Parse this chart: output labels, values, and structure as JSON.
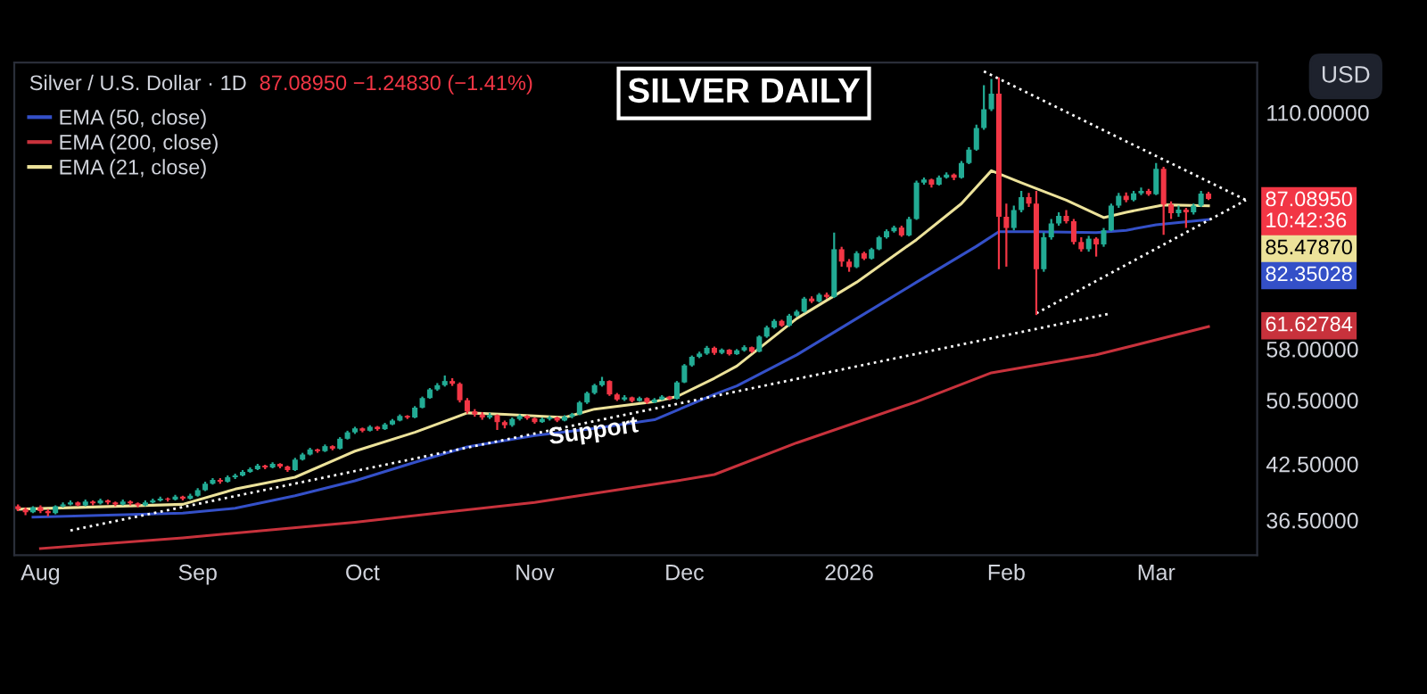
{
  "chart_data": {
    "type": "candlestick",
    "title": "Silver / U.S. Dollar · 1D",
    "subtitle": "87.08950 −1.24830 (−1.41%)",
    "categories": [
      null,
      null,
      null,
      "Aug",
      null,
      null,
      null,
      null,
      null,
      null,
      null,
      null,
      null,
      null,
      null,
      null,
      null,
      null,
      null,
      null,
      null,
      null,
      null,
      null,
      "Sep",
      null,
      null,
      null,
      null,
      null,
      null,
      null,
      null,
      null,
      null,
      null,
      null,
      null,
      null,
      null,
      null,
      null,
      null,
      null,
      null,
      null,
      "Oct",
      null,
      null,
      null,
      null,
      null,
      null,
      null,
      null,
      null,
      null,
      null,
      null,
      null,
      null,
      null,
      null,
      null,
      null,
      null,
      null,
      null,
      null,
      "Nov",
      null,
      null,
      null,
      null,
      null,
      null,
      null,
      null,
      null,
      null,
      null,
      null,
      null,
      null,
      null,
      null,
      null,
      null,
      null,
      "Dec",
      null,
      null,
      null,
      null,
      null,
      null,
      null,
      null,
      null,
      null,
      null,
      null,
      null,
      null,
      null,
      null,
      null,
      null,
      null,
      null,
      null,
      "2026",
      null,
      null,
      null,
      null,
      null,
      null,
      null,
      null,
      null,
      null,
      null,
      null,
      null,
      null,
      null,
      null,
      null,
      null,
      null,
      null,
      "Feb",
      null,
      null,
      null,
      null,
      null,
      null,
      null,
      null,
      null,
      null,
      null,
      null,
      null,
      null,
      null,
      null,
      null,
      null,
      null,
      "Mar",
      null,
      null,
      null,
      null,
      null,
      null,
      null,
      null,
      null,
      null,
      null,
      null,
      null
    ],
    "ohlc": [
      [
        37.9,
        38.1,
        37.4,
        37.6
      ],
      [
        37.6,
        37.8,
        37.0,
        37.3
      ],
      [
        37.3,
        37.9,
        37.2,
        37.8
      ],
      [
        37.8,
        38.0,
        37.2,
        37.4
      ],
      [
        37.4,
        37.6,
        36.9,
        37.2
      ],
      [
        37.2,
        38.0,
        37.1,
        37.9
      ],
      [
        37.9,
        38.3,
        37.8,
        38.1
      ],
      [
        38.1,
        38.5,
        38.0,
        38.3
      ],
      [
        38.3,
        38.4,
        37.9,
        38.0
      ],
      [
        38.0,
        38.6,
        37.9,
        38.4
      ],
      [
        38.4,
        38.5,
        38.0,
        38.2
      ],
      [
        38.2,
        38.7,
        38.1,
        38.5
      ],
      [
        38.5,
        38.6,
        38.1,
        38.3
      ],
      [
        38.3,
        38.4,
        37.9,
        38.1
      ],
      [
        38.1,
        38.6,
        38.0,
        38.4
      ],
      [
        38.4,
        38.5,
        38.0,
        38.2
      ],
      [
        38.2,
        38.3,
        37.8,
        38.0
      ],
      [
        38.0,
        38.5,
        37.9,
        38.3
      ],
      [
        38.3,
        38.7,
        38.2,
        38.5
      ],
      [
        38.5,
        38.9,
        38.4,
        38.7
      ],
      [
        38.7,
        38.8,
        38.4,
        38.6
      ],
      [
        38.6,
        39.1,
        38.5,
        38.9
      ],
      [
        38.9,
        39.0,
        38.5,
        38.7
      ],
      [
        38.7,
        39.2,
        38.6,
        39.0
      ],
      [
        39.0,
        39.8,
        38.9,
        39.6
      ],
      [
        39.6,
        40.5,
        39.5,
        40.3
      ],
      [
        40.3,
        40.9,
        40.2,
        40.7
      ],
      [
        40.7,
        40.9,
        40.3,
        40.5
      ],
      [
        40.5,
        41.2,
        40.4,
        41.0
      ],
      [
        41.0,
        41.4,
        40.8,
        41.2
      ],
      [
        41.2,
        41.8,
        41.1,
        41.6
      ],
      [
        41.6,
        42.1,
        41.5,
        41.9
      ],
      [
        41.9,
        42.5,
        41.8,
        42.3
      ],
      [
        42.3,
        42.4,
        41.9,
        42.1
      ],
      [
        42.1,
        42.7,
        42.0,
        42.5
      ],
      [
        42.5,
        42.6,
        42.0,
        42.2
      ],
      [
        42.2,
        42.3,
        41.6,
        41.8
      ],
      [
        41.8,
        43.2,
        41.7,
        43.0
      ],
      [
        43.0,
        43.8,
        42.9,
        43.6
      ],
      [
        43.6,
        44.4,
        43.5,
        44.2
      ],
      [
        44.2,
        44.3,
        43.8,
        44.0
      ],
      [
        44.0,
        44.8,
        43.9,
        44.6
      ],
      [
        44.6,
        44.7,
        44.1,
        44.3
      ],
      [
        44.3,
        45.7,
        44.2,
        45.5
      ],
      [
        45.5,
        46.5,
        45.4,
        46.3
      ],
      [
        46.3,
        47.0,
        46.1,
        46.8
      ],
      [
        46.8,
        46.9,
        46.3,
        46.5
      ],
      [
        46.5,
        47.2,
        46.4,
        47.0
      ],
      [
        47.0,
        47.1,
        46.5,
        46.7
      ],
      [
        46.7,
        47.5,
        46.6,
        47.3
      ],
      [
        47.3,
        48.0,
        47.2,
        47.8
      ],
      [
        47.8,
        48.6,
        47.7,
        48.4
      ],
      [
        48.4,
        48.5,
        48.0,
        48.2
      ],
      [
        48.2,
        49.7,
        48.1,
        49.5
      ],
      [
        49.5,
        51.0,
        49.4,
        50.8
      ],
      [
        50.8,
        52.2,
        50.7,
        52.0
      ],
      [
        52.0,
        52.9,
        51.8,
        52.6
      ],
      [
        52.6,
        54.0,
        52.4,
        53.2
      ],
      [
        53.2,
        53.6,
        52.5,
        52.8
      ],
      [
        52.8,
        53.0,
        50.2,
        50.5
      ],
      [
        50.5,
        50.8,
        48.7,
        49.0
      ],
      [
        49.0,
        49.3,
        48.3,
        48.6
      ],
      [
        48.6,
        48.9,
        47.9,
        48.2
      ],
      [
        48.2,
        48.8,
        48.0,
        48.5
      ],
      [
        48.5,
        48.6,
        46.6,
        47.6
      ],
      [
        47.6,
        47.8,
        46.8,
        47.2
      ],
      [
        47.2,
        48.2,
        47.0,
        48.0
      ],
      [
        48.0,
        48.6,
        47.8,
        48.4
      ],
      [
        48.4,
        48.5,
        47.9,
        48.1
      ],
      [
        48.1,
        48.2,
        47.4,
        47.6
      ],
      [
        47.6,
        48.2,
        47.5,
        48.0
      ],
      [
        48.0,
        48.4,
        47.8,
        48.2
      ],
      [
        48.2,
        48.3,
        47.6,
        47.8
      ],
      [
        47.8,
        48.5,
        47.7,
        48.3
      ],
      [
        48.3,
        48.8,
        48.1,
        48.6
      ],
      [
        48.6,
        50.4,
        48.5,
        50.2
      ],
      [
        50.2,
        51.7,
        50.0,
        51.5
      ],
      [
        51.5,
        52.8,
        51.3,
        52.6
      ],
      [
        52.6,
        53.8,
        52.4,
        53.2
      ],
      [
        53.2,
        53.3,
        51.1,
        51.3
      ],
      [
        51.3,
        51.5,
        50.4,
        50.6
      ],
      [
        50.6,
        51.2,
        50.4,
        50.9
      ],
      [
        50.9,
        51.0,
        50.2,
        50.4
      ],
      [
        50.4,
        51.0,
        50.3,
        50.8
      ],
      [
        50.8,
        50.9,
        50.0,
        50.2
      ],
      [
        50.2,
        50.8,
        50.1,
        50.6
      ],
      [
        50.6,
        51.2,
        50.5,
        51.0
      ],
      [
        51.0,
        51.1,
        50.5,
        50.7
      ],
      [
        50.7,
        53.2,
        50.6,
        53.0
      ],
      [
        53.0,
        55.7,
        52.9,
        55.5
      ],
      [
        55.5,
        57.0,
        55.3,
        56.8
      ],
      [
        56.8,
        57.6,
        56.6,
        57.3
      ],
      [
        57.3,
        58.5,
        57.1,
        58.2
      ],
      [
        58.2,
        58.4,
        57.1,
        57.4
      ],
      [
        57.4,
        58.1,
        57.2,
        57.9
      ],
      [
        57.9,
        58.0,
        57.0,
        57.2
      ],
      [
        57.2,
        58.0,
        57.1,
        57.8
      ],
      [
        57.8,
        58.6,
        57.6,
        58.3
      ],
      [
        58.3,
        58.4,
        57.4,
        57.6
      ],
      [
        57.6,
        60.2,
        57.5,
        60.0
      ],
      [
        60.0,
        61.8,
        59.8,
        61.5
      ],
      [
        61.5,
        62.9,
        61.3,
        62.6
      ],
      [
        62.6,
        62.8,
        61.6,
        61.8
      ],
      [
        61.8,
        63.8,
        61.6,
        63.5
      ],
      [
        63.5,
        64.5,
        63.3,
        64.2
      ],
      [
        64.2,
        66.8,
        64.0,
        66.5
      ],
      [
        66.5,
        66.9,
        65.7,
        66.0
      ],
      [
        66.0,
        67.5,
        65.8,
        67.2
      ],
      [
        67.2,
        67.6,
        66.5,
        66.8
      ],
      [
        66.8,
        79.5,
        66.6,
        76.0
      ],
      [
        76.0,
        76.5,
        72.5,
        73.5
      ],
      [
        73.5,
        74.0,
        71.5,
        72.4
      ],
      [
        72.4,
        75.6,
        72.2,
        75.2
      ],
      [
        75.2,
        75.5,
        73.8,
        74.1
      ],
      [
        74.1,
        76.3,
        73.9,
        76.0
      ],
      [
        76.0,
        78.8,
        75.8,
        78.5
      ],
      [
        78.5,
        80.2,
        78.2,
        79.8
      ],
      [
        79.8,
        81.0,
        79.5,
        80.6
      ],
      [
        80.6,
        81.0,
        78.6,
        78.9
      ],
      [
        78.9,
        83.0,
        78.7,
        82.5
      ],
      [
        82.5,
        91.5,
        82.3,
        91.0
      ],
      [
        91.0,
        92.3,
        90.5,
        91.8
      ],
      [
        91.8,
        92.0,
        89.8,
        90.5
      ],
      [
        90.5,
        92.8,
        90.3,
        92.3
      ],
      [
        92.3,
        93.6,
        92.0,
        93.0
      ],
      [
        93.0,
        93.3,
        91.6,
        92.2
      ],
      [
        92.2,
        96.5,
        92.0,
        96.0
      ],
      [
        96.0,
        100.2,
        95.7,
        99.5
      ],
      [
        99.5,
        106.5,
        99.2,
        105.5
      ],
      [
        105.5,
        118.5,
        105.0,
        111.0
      ],
      [
        111.0,
        120.5,
        110.5,
        115.8
      ],
      [
        115.8,
        121.0,
        72.0,
        83.0
      ],
      [
        83.0,
        86.0,
        72.5,
        80.5
      ],
      [
        80.5,
        85.5,
        80.0,
        84.5
      ],
      [
        84.5,
        89.0,
        84.0,
        87.5
      ],
      [
        87.5,
        88.5,
        85.2,
        86.0
      ],
      [
        86.0,
        89.0,
        63.6,
        72.0
      ],
      [
        72.0,
        79.5,
        71.5,
        78.5
      ],
      [
        78.5,
        82.5,
        78.0,
        81.5
      ],
      [
        81.5,
        84.0,
        81.0,
        83.2
      ],
      [
        83.2,
        84.5,
        81.5,
        82.0
      ],
      [
        82.0,
        82.5,
        77.0,
        77.5
      ],
      [
        77.5,
        78.5,
        75.5,
        76.0
      ],
      [
        76.0,
        78.8,
        75.5,
        78.2
      ],
      [
        78.2,
        78.5,
        74.5,
        77.0
      ],
      [
        77.0,
        80.5,
        76.5,
        80.0
      ],
      [
        80.0,
        86.0,
        79.8,
        85.5
      ],
      [
        85.5,
        88.5,
        85.0,
        87.8
      ],
      [
        87.8,
        88.6,
        86.3,
        86.8
      ],
      [
        86.8,
        89.0,
        86.5,
        88.4
      ],
      [
        88.4,
        89.8,
        88.0,
        89.0
      ],
      [
        89.0,
        89.5,
        87.8,
        88.2
      ],
      [
        88.2,
        96.0,
        88.0,
        94.5
      ],
      [
        94.5,
        95.0,
        79.0,
        85.8
      ],
      [
        85.8,
        86.5,
        82.5,
        83.8
      ],
      [
        83.8,
        85.5,
        83.0,
        84.6
      ],
      [
        84.6,
        85.0,
        80.5,
        84.0
      ],
      [
        84.0,
        86.0,
        83.5,
        85.5
      ],
      [
        85.5,
        89.0,
        85.2,
        88.34
      ],
      [
        88.34,
        88.8,
        86.8,
        87.09
      ],
      null,
      null,
      null,
      null,
      null,
      null
    ],
    "colors": [
      "#f23645",
      "#f23645",
      "#22ab94",
      "#f23645",
      "#f23645",
      "#22ab94",
      "#22ab94",
      "#22ab94",
      "#f23645",
      "#22ab94",
      "#f23645",
      "#22ab94",
      "#f23645",
      "#f23645",
      "#22ab94",
      "#f23645",
      "#f23645",
      "#22ab94",
      "#22ab94",
      "#22ab94",
      "#f23645",
      "#22ab94",
      "#f23645",
      "#22ab94",
      "#22ab94",
      "#22ab94",
      "#22ab94",
      "#f23645",
      "#22ab94",
      "#22ab94",
      "#22ab94",
      "#22ab94",
      "#22ab94",
      "#f23645",
      "#22ab94",
      "#f23645",
      "#f23645",
      "#22ab94",
      "#22ab94",
      "#22ab94",
      "#f23645",
      "#22ab94",
      "#f23645",
      "#22ab94",
      "#22ab94",
      "#22ab94",
      "#f23645",
      "#22ab94",
      "#f23645",
      "#22ab94",
      "#22ab94",
      "#22ab94",
      "#f23645",
      "#22ab94",
      "#22ab94",
      "#22ab94",
      "#22ab94",
      "#22ab94",
      "#f23645",
      "#f23645",
      "#f23645",
      "#f23645",
      "#f23645",
      "#22ab94",
      "#f23645",
      "#f23645",
      "#22ab94",
      "#22ab94",
      "#f23645",
      "#f23645",
      "#22ab94",
      "#22ab94",
      "#f23645",
      "#22ab94",
      "#22ab94",
      "#22ab94",
      "#22ab94",
      "#22ab94",
      "#22ab94",
      "#f23645",
      "#f23645",
      "#22ab94",
      "#f23645",
      "#22ab94",
      "#f23645",
      "#22ab94",
      "#22ab94",
      "#f23645",
      "#22ab94",
      "#22ab94",
      "#22ab94",
      "#22ab94",
      "#22ab94",
      "#f23645",
      "#22ab94",
      "#f23645",
      "#22ab94",
      "#22ab94",
      "#f23645",
      "#22ab94",
      "#22ab94",
      "#22ab94",
      "#f23645",
      "#22ab94",
      "#22ab94",
      "#22ab94",
      "#f23645",
      "#22ab94",
      "#f23645",
      "#22ab94",
      "#f23645",
      "#f23645",
      "#22ab94",
      "#f23645",
      "#22ab94",
      "#22ab94",
      "#22ab94",
      "#22ab94",
      "#f23645",
      "#22ab94",
      "#22ab94",
      "#22ab94",
      "#f23645",
      "#22ab94",
      "#22ab94",
      "#f23645",
      "#22ab94",
      "#22ab94",
      "#22ab94",
      "#22ab94",
      "#22ab94",
      "#f23645",
      "#f23645",
      "#22ab94",
      "#22ab94",
      "#f23645",
      "#f23645",
      "#22ab94",
      "#22ab94",
      "#22ab94",
      "#f23645",
      "#f23645",
      "#f23645",
      "#22ab94",
      "#f23645",
      "#22ab94",
      "#22ab94",
      "#22ab94",
      "#f23645",
      "#22ab94",
      "#22ab94",
      "#f23645",
      "#22ab94",
      "#f23645",
      "#f23645",
      "#22ab94",
      "#f23645",
      "#22ab94",
      "#22ab94",
      "#f23645",
      null,
      null,
      null,
      null,
      null,
      null
    ],
    "log": "y",
    "ylim": [
      33.2,
      126
    ],
    "yticks": [
      {
        "value": 36.5,
        "label": "36.50000"
      },
      {
        "value": 42.5,
        "label": "42.50000"
      },
      {
        "value": 50.5,
        "label": "50.50000"
      },
      {
        "value": 58,
        "label": "58.00000"
      },
      {
        "value": 110,
        "label": "110.00000"
      }
    ],
    "series": [
      {
        "type": "line",
        "name": "EMA (50, close)",
        "color": "#3450c8",
        "line_style": "solid",
        "values": [
          null,
          null,
          36.8,
          null,
          null,
          null,
          null,
          null,
          null,
          null,
          null,
          null,
          null,
          null,
          null,
          null,
          null,
          null,
          null,
          null,
          null,
          null,
          37.2,
          null,
          null,
          null,
          null,
          null,
          null,
          37.7,
          null,
          null,
          null,
          null,
          null,
          null,
          null,
          39,
          null,
          null,
          null,
          null,
          null,
          null,
          null,
          40.6,
          null,
          null,
          null,
          null,
          null,
          null,
          null,
          42.7,
          null,
          null,
          null,
          null,
          null,
          null,
          44.5,
          null,
          null,
          null,
          null,
          null,
          null,
          null,
          null,
          45.9,
          null,
          null,
          null,
          null,
          null,
          null,
          null,
          46.8,
          null,
          null,
          null,
          null,
          null,
          null,
          null,
          47.9,
          null,
          null,
          null,
          null,
          null,
          null,
          null,
          51.3,
          null,
          null,
          52.5,
          null,
          null,
          null,
          null,
          null,
          null,
          null,
          57.1,
          null,
          null,
          null,
          null,
          null,
          null,
          null,
          63,
          null,
          null,
          null,
          null,
          null,
          null,
          null,
          69.5,
          null,
          null,
          null,
          null,
          null,
          null,
          null,
          76.6,
          null,
          null,
          79.7,
          null,
          null,
          null,
          null,
          79.7,
          null,
          null,
          null,
          null,
          null,
          null,
          null,
          79.5,
          null,
          null,
          null,
          80,
          null,
          null,
          null,
          81.2,
          null,
          null,
          null,
          null,
          null,
          null,
          82.35028,
          null,
          null,
          null,
          null,
          null,
          null
        ]
      },
      {
        "type": "line",
        "name": "EMA (200, close)",
        "color": "#c8323c",
        "line_style": "solid",
        "values": [
          null,
          null,
          null,
          33.8,
          null,
          null,
          null,
          null,
          null,
          null,
          null,
          null,
          null,
          null,
          null,
          null,
          null,
          null,
          null,
          null,
          null,
          null,
          34.8,
          null,
          null,
          null,
          null,
          null,
          null,
          null,
          null,
          null,
          null,
          null,
          null,
          null,
          null,
          null,
          null,
          null,
          null,
          null,
          null,
          null,
          null,
          36.3,
          null,
          null,
          null,
          null,
          null,
          null,
          null,
          null,
          null,
          null,
          null,
          null,
          null,
          null,
          null,
          null,
          null,
          null,
          null,
          null,
          null,
          null,
          null,
          38.3,
          null,
          null,
          null,
          null,
          null,
          null,
          null,
          null,
          null,
          null,
          null,
          null,
          null,
          null,
          null,
          null,
          null,
          null,
          40.6,
          null,
          null,
          null,
          null,
          41.3,
          null,
          null,
          null,
          null,
          null,
          null,
          null,
          null,
          null,
          null,
          45,
          null,
          null,
          null,
          null,
          null,
          null,
          null,
          null,
          null,
          null,
          null,
          null,
          null,
          null,
          null,
          50.3,
          null,
          null,
          null,
          null,
          null,
          null,
          null,
          null,
          null,
          54.4,
          null,
          null,
          null,
          null,
          null,
          null,
          null,
          null,
          null,
          null,
          null,
          null,
          null,
          57.1,
          null,
          null,
          null,
          null,
          null,
          null,
          null,
          null,
          null,
          null,
          null,
          null,
          null,
          null,
          61.62784,
          null,
          null,
          null,
          null,
          null,
          null
        ]
      },
      {
        "type": "line",
        "name": "EMA (21, close)",
        "color": "#ece29a",
        "line_style": "solid",
        "values": [
          37.6,
          null,
          null,
          null,
          null,
          null,
          null,
          null,
          null,
          null,
          null,
          null,
          null,
          null,
          null,
          null,
          null,
          null,
          null,
          null,
          null,
          null,
          38.1,
          null,
          null,
          null,
          null,
          null,
          null,
          39.7,
          null,
          null,
          null,
          null,
          null,
          null,
          null,
          41,
          null,
          null,
          null,
          null,
          null,
          null,
          null,
          44,
          null,
          null,
          null,
          null,
          null,
          null,
          null,
          46.3,
          null,
          null,
          null,
          null,
          null,
          null,
          48.8,
          null,
          null,
          null,
          null,
          48.6,
          null,
          null,
          null,
          null,
          null,
          null,
          null,
          48.2,
          null,
          null,
          null,
          49.3,
          null,
          null,
          null,
          null,
          null,
          null,
          null,
          50.3,
          null,
          null,
          51,
          null,
          null,
          null,
          null,
          53.6,
          null,
          null,
          55.4,
          null,
          null,
          null,
          null,
          null,
          null,
          null,
          63,
          null,
          null,
          null,
          null,
          null,
          null,
          null,
          69.5,
          null,
          null,
          null,
          null,
          null,
          null,
          null,
          78,
          null,
          null,
          null,
          null,
          null,
          86,
          null,
          null,
          null,
          94,
          null,
          null,
          null,
          91,
          null,
          null,
          null,
          null,
          null,
          86.8,
          null,
          null,
          null,
          null,
          82.8,
          null,
          null,
          84,
          null,
          null,
          null,
          null,
          85.7,
          null,
          null,
          null,
          null,
          null,
          85.4787,
          null,
          null,
          null,
          null,
          null,
          null
        ]
      },
      {
        "type": "line",
        "color": "#ffffff",
        "line_style": "dotted",
        "values": [
          null,
          null,
          null,
          null,
          null,
          null,
          null,
          35.5,
          null,
          null,
          null,
          null,
          null,
          null,
          null,
          null,
          null,
          null,
          null,
          null,
          null,
          null,
          null,
          null,
          null,
          null,
          null,
          null,
          null,
          null,
          null,
          null,
          null,
          null,
          null,
          null,
          null,
          null,
          null,
          null,
          null,
          null,
          null,
          null,
          null,
          null,
          null,
          null,
          null,
          null,
          null,
          null,
          null,
          null,
          null,
          null,
          null,
          null,
          null,
          null,
          null,
          null,
          null,
          null,
          null,
          null,
          null,
          null,
          null,
          null,
          null,
          null,
          null,
          null,
          null,
          null,
          null,
          null,
          null,
          null,
          null,
          null,
          null,
          null,
          null,
          null,
          null,
          null,
          null,
          null,
          null,
          null,
          null,
          null,
          null,
          null,
          null,
          null,
          null,
          null,
          null,
          null,
          null,
          null,
          null,
          null,
          null,
          null,
          null,
          null,
          null,
          null,
          null,
          null,
          null,
          null,
          null,
          null,
          null,
          null,
          null,
          null,
          null,
          null,
          null,
          null,
          null,
          null,
          null,
          null,
          null,
          null,
          null,
          null,
          null,
          null,
          null,
          null,
          null,
          null,
          null,
          null,
          null,
          null,
          null,
          null,
          63.9,
          null,
          null,
          null,
          null,
          null,
          null,
          null,
          null,
          null,
          null,
          null,
          null,
          null,
          null,
          null,
          null,
          null,
          null,
          null
        ]
      },
      {
        "type": "line",
        "color": "#ffffff",
        "line_style": "dotted",
        "values": [
          null,
          null,
          null,
          null,
          null,
          null,
          null,
          null,
          null,
          null,
          null,
          null,
          null,
          null,
          null,
          null,
          null,
          null,
          null,
          null,
          null,
          null,
          null,
          null,
          null,
          null,
          null,
          null,
          null,
          null,
          null,
          null,
          null,
          null,
          null,
          null,
          null,
          null,
          null,
          null,
          null,
          null,
          null,
          null,
          null,
          null,
          null,
          null,
          null,
          null,
          null,
          null,
          null,
          null,
          null,
          null,
          null,
          null,
          null,
          null,
          null,
          null,
          null,
          null,
          null,
          null,
          null,
          null,
          null,
          null,
          null,
          null,
          null,
          null,
          null,
          null,
          null,
          null,
          null,
          null,
          null,
          null,
          null,
          null,
          null,
          null,
          null,
          null,
          null,
          null,
          null,
          null,
          null,
          null,
          null,
          null,
          null,
          null,
          null,
          null,
          null,
          null,
          null,
          null,
          null,
          null,
          null,
          null,
          null,
          null,
          null,
          null,
          null,
          null,
          null,
          null,
          null,
          null,
          null,
          null,
          null,
          null,
          null,
          null,
          null,
          null,
          null,
          null,
          null,
          123,
          null,
          null,
          null,
          null,
          null,
          null,
          null,
          null,
          null,
          null,
          null,
          null,
          null,
          null,
          null,
          null,
          null,
          null,
          null,
          null,
          null,
          null,
          null,
          null,
          null,
          null,
          null,
          null,
          null,
          null,
          null,
          null,
          null,
          null,
          86.8,
          null
        ]
      },
      {
        "type": "line",
        "color": "#ffffff",
        "line_style": "dotted",
        "values": [
          null,
          null,
          null,
          null,
          null,
          null,
          null,
          null,
          null,
          null,
          null,
          null,
          null,
          null,
          null,
          null,
          null,
          null,
          null,
          null,
          null,
          null,
          null,
          null,
          null,
          null,
          null,
          null,
          null,
          null,
          null,
          null,
          null,
          null,
          null,
          null,
          null,
          null,
          null,
          null,
          null,
          null,
          null,
          null,
          null,
          null,
          null,
          null,
          null,
          null,
          null,
          null,
          null,
          null,
          null,
          null,
          null,
          null,
          null,
          null,
          null,
          null,
          null,
          null,
          null,
          null,
          null,
          null,
          null,
          null,
          null,
          null,
          null,
          null,
          null,
          null,
          null,
          null,
          null,
          null,
          null,
          null,
          null,
          null,
          null,
          null,
          null,
          null,
          null,
          null,
          null,
          null,
          null,
          null,
          null,
          null,
          null,
          null,
          null,
          null,
          null,
          null,
          null,
          null,
          null,
          null,
          null,
          null,
          null,
          null,
          null,
          null,
          null,
          null,
          null,
          null,
          null,
          null,
          null,
          null,
          null,
          null,
          null,
          null,
          null,
          null,
          null,
          null,
          null,
          null,
          null,
          null,
          null,
          null,
          null,
          null,
          63.9,
          null,
          null,
          null,
          null,
          null,
          null,
          null,
          null,
          null,
          null,
          null,
          null,
          null,
          null,
          null,
          null,
          null,
          null,
          null,
          null,
          null,
          null,
          null,
          null,
          null,
          null,
          null,
          86.8,
          null
        ]
      }
    ],
    "legend": "top left",
    "annotations": [
      "SILVER DAILY",
      "USD",
      "Support",
      "87.08950\n10:42:36",
      "85.47870",
      "82.35028",
      "61.62784"
    ]
  }
}
